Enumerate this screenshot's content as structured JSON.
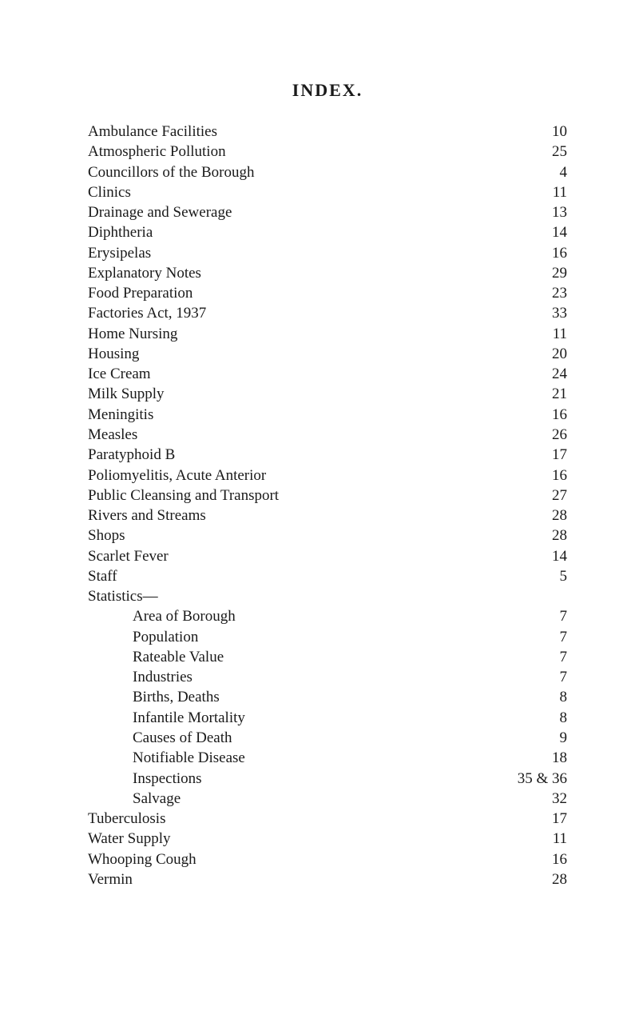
{
  "title": "INDEX.",
  "background_color": "#ffffff",
  "text_color": "#1a1a1a",
  "font_family": "Times New Roman",
  "title_fontsize": 22,
  "body_fontsize": 19,
  "entries": [
    {
      "label": "Ambulance Facilities",
      "page": "10",
      "indent": 0
    },
    {
      "label": "Atmospheric Pollution",
      "page": "25",
      "indent": 0
    },
    {
      "label": "Councillors of the Borough",
      "page": "4",
      "indent": 0
    },
    {
      "label": "Clinics",
      "page": "11",
      "indent": 0
    },
    {
      "label": "Drainage and Sewerage",
      "page": "13",
      "indent": 0
    },
    {
      "label": "Diphtheria",
      "page": "14",
      "indent": 0
    },
    {
      "label": "Erysipelas",
      "page": "16",
      "indent": 0
    },
    {
      "label": "Explanatory Notes",
      "page": "29",
      "indent": 0
    },
    {
      "label": "Food Preparation",
      "page": "23",
      "indent": 0
    },
    {
      "label": "Factories Act, 1937",
      "page": "33",
      "indent": 0
    },
    {
      "label": "Home Nursing",
      "page": "11",
      "indent": 0
    },
    {
      "label": "Housing",
      "page": "20",
      "indent": 0
    },
    {
      "label": "Ice Cream",
      "page": "24",
      "indent": 0
    },
    {
      "label": "Milk Supply",
      "page": "21",
      "indent": 0
    },
    {
      "label": "Meningitis",
      "page": "16",
      "indent": 0
    },
    {
      "label": "Measles",
      "page": "26",
      "indent": 0
    },
    {
      "label": "Paratyphoid B",
      "page": "17",
      "indent": 0
    },
    {
      "label": "Poliomyelitis, Acute Anterior",
      "page": "16",
      "indent": 0
    },
    {
      "label": "Public Cleansing and Transport",
      "page": "27",
      "indent": 0
    },
    {
      "label": "Rivers and Streams",
      "page": "28",
      "indent": 0
    },
    {
      "label": "Shops",
      "page": "28",
      "indent": 0
    },
    {
      "label": "Scarlet Fever",
      "page": "14",
      "indent": 0
    },
    {
      "label": "Staff",
      "page": "5",
      "indent": 0
    },
    {
      "label": "Statistics—",
      "page": "",
      "indent": 0,
      "header": true
    },
    {
      "label": "Area of Borough",
      "page": "7",
      "indent": 1
    },
    {
      "label": "Population",
      "page": "7",
      "indent": 1
    },
    {
      "label": "Rateable Value",
      "page": "7",
      "indent": 1
    },
    {
      "label": "Industries",
      "page": "7",
      "indent": 1
    },
    {
      "label": "Births, Deaths",
      "page": "8",
      "indent": 1
    },
    {
      "label": "Infantile Mortality",
      "page": "8",
      "indent": 1
    },
    {
      "label": "Causes of Death",
      "page": "9",
      "indent": 1
    },
    {
      "label": "Notifiable Disease",
      "page": "18",
      "indent": 1
    },
    {
      "label": "Inspections",
      "page": "35 & 36",
      "indent": 1
    },
    {
      "label": "Salvage",
      "page": "32",
      "indent": 1
    },
    {
      "label": "Tuberculosis",
      "page": "17",
      "indent": 0
    },
    {
      "label": "Water Supply",
      "page": "11",
      "indent": 0
    },
    {
      "label": "Whooping Cough",
      "page": "16",
      "indent": 0
    },
    {
      "label": "Vermin",
      "page": "28",
      "indent": 0
    }
  ]
}
